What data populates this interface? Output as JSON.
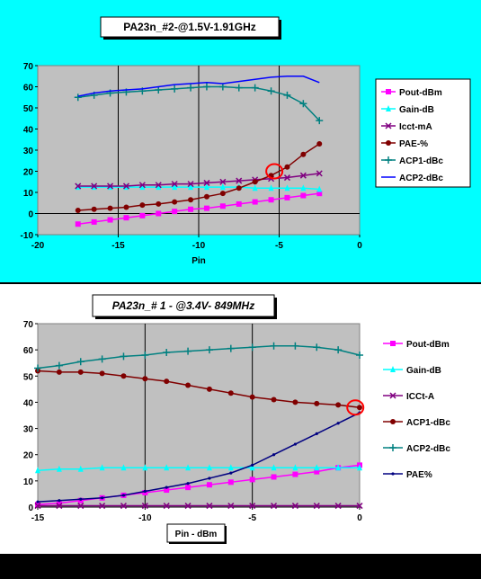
{
  "chart_data": [
    {
      "type": "line",
      "title": "PA23n_#2-@1.5V-1.91GHz",
      "xlabel": "Pin",
      "ylabel": "",
      "xlim": [
        -20,
        0
      ],
      "ylim": [
        -10,
        70
      ],
      "xticks": [
        -20,
        -15,
        -10,
        -5,
        0
      ],
      "yticks": [
        -10,
        0,
        10,
        20,
        30,
        40,
        50,
        60,
        70
      ],
      "grid": "vertical",
      "legend_position": "right",
      "plot_background": "#c0c0c0",
      "panel_background": "#00ffff",
      "x": [
        -17.5,
        -16.5,
        -15.5,
        -14.5,
        -13.5,
        -12.5,
        -11.5,
        -10.5,
        -9.5,
        -8.5,
        -7.5,
        -6.5,
        -5.5,
        -4.5,
        -3.5,
        -2.5
      ],
      "series": [
        {
          "name": "Pout-dBm",
          "color": "#ff00ff",
          "marker": "square",
          "values": [
            -5,
            -4,
            -3,
            -2,
            -1,
            0,
            1,
            2,
            2.5,
            3.5,
            4.5,
            5.5,
            6.5,
            7.5,
            8.5,
            9.5
          ]
        },
        {
          "name": "Gain-dB",
          "color": "#00ffff",
          "marker": "triangle",
          "values": [
            12.5,
            12.5,
            12.5,
            12.5,
            12.5,
            12.5,
            12.5,
            12.5,
            12.5,
            12.5,
            12.5,
            12,
            12,
            12,
            12,
            11.5
          ]
        },
        {
          "name": "Icct-mA",
          "color": "#800080",
          "marker": "x",
          "values": [
            13,
            13,
            13,
            13,
            13.5,
            13.5,
            14,
            14,
            14.5,
            15,
            15.5,
            16,
            16.5,
            17,
            18,
            19
          ]
        },
        {
          "name": "PAE-%",
          "color": "#800000",
          "marker": "circle",
          "values": [
            1.5,
            2,
            2.5,
            3,
            4,
            4.5,
            5.5,
            6.5,
            8,
            9.5,
            12,
            15,
            18,
            22,
            28,
            33
          ]
        },
        {
          "name": "ACP1-dBc",
          "color": "#008080",
          "marker": "plus",
          "values": [
            55,
            56,
            57,
            57.5,
            58,
            58.5,
            59,
            59.5,
            60,
            60,
            59.5,
            59.5,
            58,
            56,
            52,
            44
          ]
        },
        {
          "name": "ACP2-dBc",
          "color": "#0000ff",
          "marker": "none",
          "values": [
            55.5,
            57,
            58,
            58.5,
            59,
            60,
            61,
            61.5,
            62,
            61.5,
            62.5,
            63.5,
            64.5,
            65,
            65,
            62
          ]
        }
      ],
      "highlight": {
        "x": -5.3,
        "y": 20,
        "color": "#ff0000"
      }
    },
    {
      "type": "line",
      "title": "PA23n_# 1 - @3.4V- 849MHz",
      "xlabel": "Pin - dBm",
      "ylabel": "",
      "xlim": [
        -15,
        0
      ],
      "ylim": [
        0,
        70
      ],
      "xticks": [
        -15,
        -10,
        -5,
        0
      ],
      "yticks": [
        0,
        10,
        20,
        30,
        40,
        50,
        60,
        70
      ],
      "grid": "vertical",
      "legend_position": "right",
      "plot_background": "#c0c0c0",
      "panel_background": "#ffffff",
      "x": [
        -15,
        -14,
        -13,
        -12,
        -11,
        -10,
        -9,
        -8,
        -7,
        -6,
        -5,
        -4,
        -3,
        -2,
        -1,
        0
      ],
      "series": [
        {
          "name": "Pout-dBm",
          "color": "#ff00ff",
          "marker": "square",
          "values": [
            1,
            1.5,
            2.5,
            3.5,
            4.5,
            5.5,
            6.5,
            7.5,
            8.5,
            9.5,
            10.5,
            11.5,
            12.5,
            13.5,
            15,
            16
          ]
        },
        {
          "name": "Gain-dB",
          "color": "#00ffff",
          "marker": "triangle",
          "values": [
            14,
            14.5,
            14.5,
            15,
            15,
            15,
            15,
            15,
            15,
            15,
            15,
            15,
            15,
            15,
            15,
            15
          ]
        },
        {
          "name": "ICCt-A",
          "color": "#800080",
          "marker": "x",
          "values": [
            0.5,
            0.5,
            0.5,
            0.5,
            0.5,
            0.5,
            0.5,
            0.5,
            0.5,
            0.5,
            0.5,
            0.5,
            0.5,
            0.5,
            0.5,
            0.5
          ]
        },
        {
          "name": "ACP1-dBc",
          "color": "#800000",
          "marker": "circle",
          "values": [
            52,
            51.5,
            51.5,
            51,
            50,
            49,
            48,
            46.5,
            45,
            43.5,
            42,
            41,
            40,
            39.5,
            39,
            38
          ]
        },
        {
          "name": "ACP2-dBc",
          "color": "#008080",
          "marker": "plus",
          "values": [
            53,
            54,
            55.5,
            56.5,
            57.5,
            58,
            59,
            59.5,
            60,
            60.5,
            61,
            61.5,
            61.5,
            61,
            60,
            58
          ]
        },
        {
          "name": "PAE%",
          "color": "#000080",
          "marker": "dot",
          "values": [
            2,
            2.5,
            3,
            3.5,
            4.5,
            6,
            7.5,
            9,
            11,
            13,
            16,
            20,
            24,
            28,
            32,
            36
          ]
        }
      ],
      "highlight": {
        "x": -0.2,
        "y": 38,
        "color": "#ff0000"
      }
    }
  ]
}
